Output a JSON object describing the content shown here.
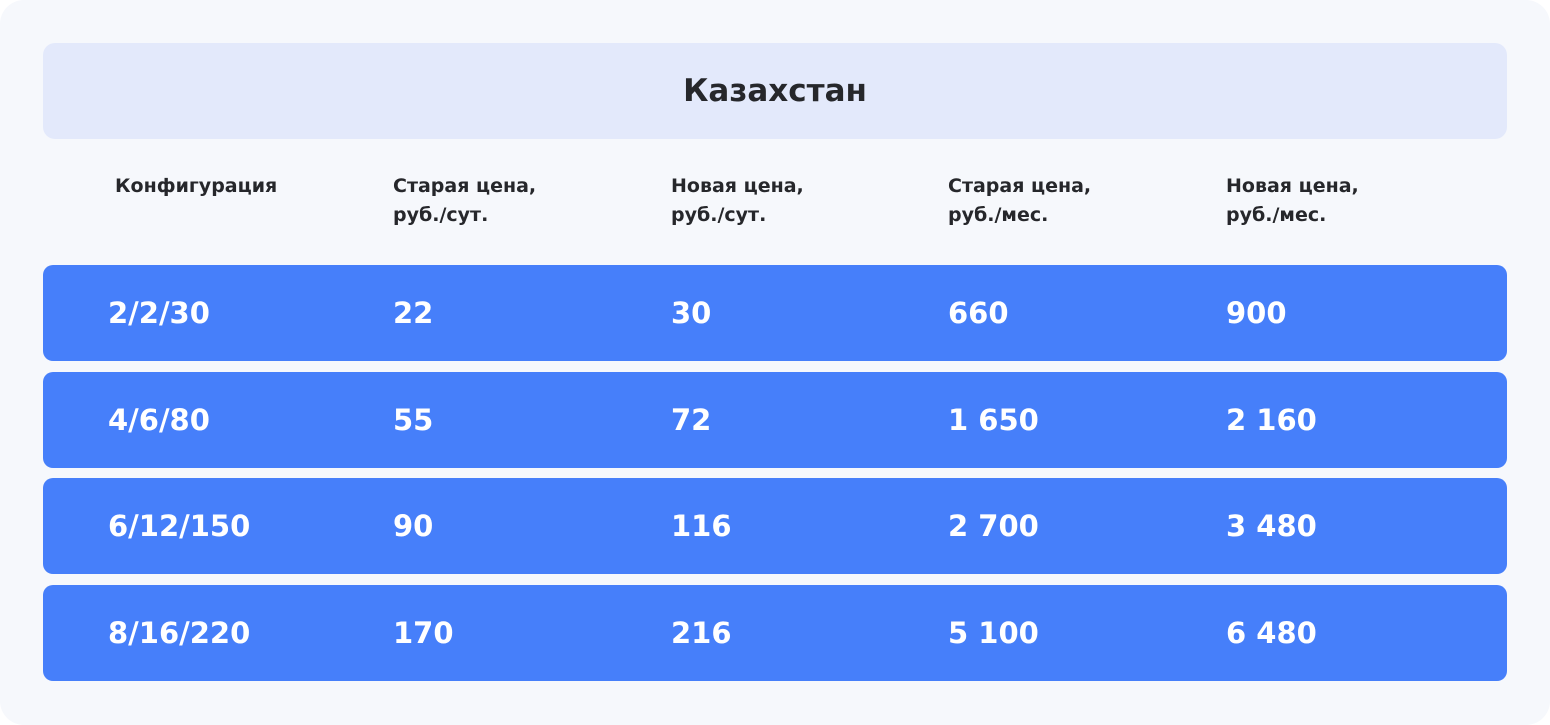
{
  "title": "Казахстан",
  "columns": [
    "Конфигурация",
    "Старая цена,\nруб./сут.",
    "Новая цена,\nруб./сут.",
    "Старая цена,\nруб./мес.",
    "Новая цена,\nруб./мес."
  ],
  "rows": [
    [
      "2/2/30",
      "22",
      "30",
      "660",
      "900"
    ],
    [
      "4/6/80",
      "55",
      "72",
      "1 650",
      "2 160"
    ],
    [
      "6/12/150",
      "90",
      "116",
      "2 700",
      "3 480"
    ],
    [
      "8/16/220",
      "170",
      "216",
      "5 100",
      "6 480"
    ]
  ],
  "colors": {
    "background": "#f6f8fc",
    "title_bar": "#e3e9fb",
    "row": "#467ffa",
    "text": "#26272b"
  }
}
